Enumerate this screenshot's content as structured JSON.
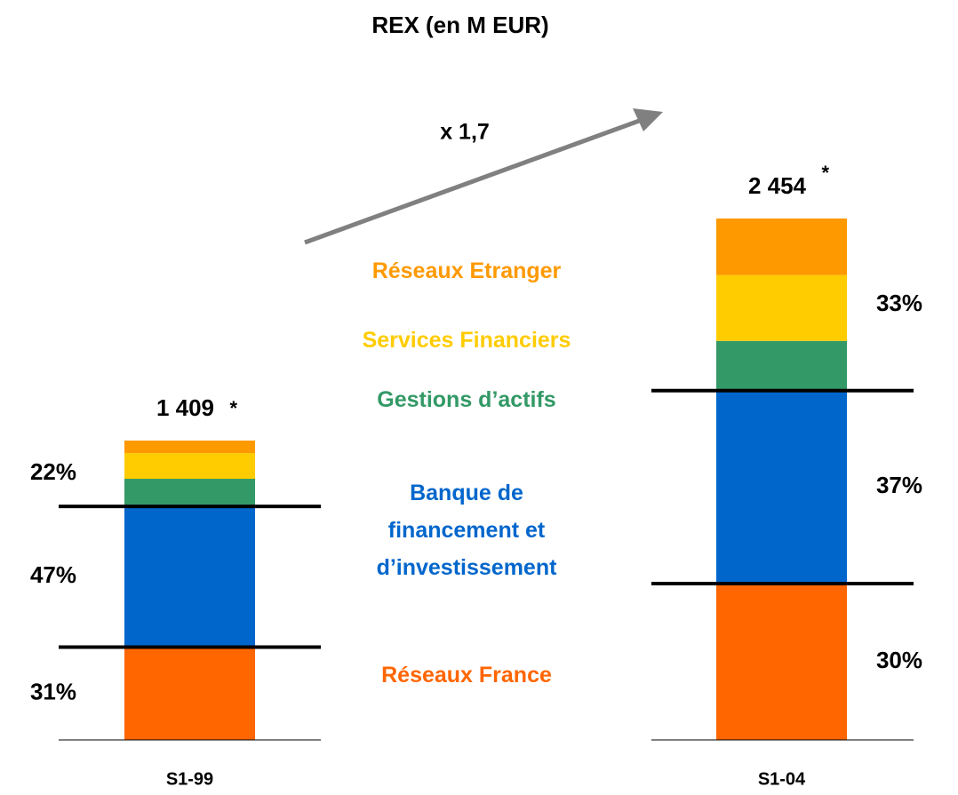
{
  "chart_data": {
    "type": "stacked_bar",
    "title": "REX (en M EUR)",
    "categories": [
      "S1-99",
      "S1-04"
    ],
    "series": [
      {
        "name": "Réseaux France",
        "color": "#ff6600",
        "values": [
          437,
          736
        ]
      },
      {
        "name": "Banque de financement et d’investissement",
        "color": "#0066cc",
        "values": [
          662,
          908
        ]
      },
      {
        "name": "Gestions d’actifs",
        "color": "#339966",
        "values": [
          130,
          234
        ]
      },
      {
        "name": "Services Financiers",
        "color": "#ffcc00",
        "values": [
          121,
          310
        ]
      },
      {
        "name": "Réseaux Etranger",
        "color": "#ff9900",
        "values": [
          59,
          266
        ]
      }
    ],
    "totals": [
      1409,
      2454
    ],
    "total_labels": [
      "1 409",
      "2 454"
    ],
    "total_notes": [
      "*",
      "*"
    ],
    "shares": [
      [
        {
          "value": 31,
          "label": "31%"
        },
        {
          "value": 47,
          "label": "47%"
        },
        {
          "value": 22,
          "label": "22%"
        }
      ],
      [
        {
          "value": 30,
          "label": "30%"
        },
        {
          "value": 37,
          "label": "37%"
        },
        {
          "value": 33,
          "label": "33%"
        }
      ]
    ],
    "annotation": "x 1,7"
  }
}
